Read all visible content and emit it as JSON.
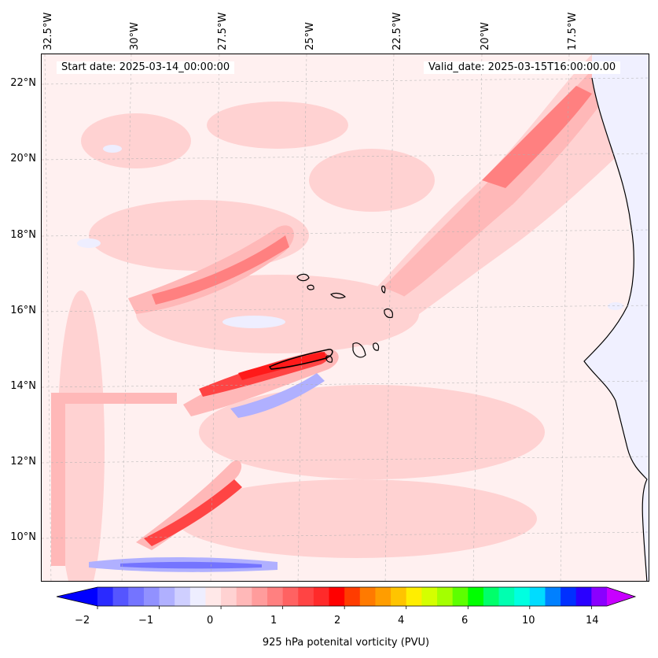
{
  "header": {
    "start_date": "Start date: 2025-03-14_00:00:00",
    "valid_date": "Valid_date: 2025-03-15T16:00:00.00"
  },
  "axes": {
    "longitude_labels": [
      "32.5°W",
      "30°W",
      "27.5°W",
      "25°W",
      "22.5°W",
      "20°W",
      "17.5°W"
    ],
    "latitude_labels": [
      "22°N",
      "20°N",
      "18°N",
      "16°N",
      "14°N",
      "12°N",
      "10°N"
    ]
  },
  "colorbar": {
    "label": "925 hPa potenital vorticity (PVU)",
    "tick_labels": [
      "−2",
      "−1",
      "0",
      "1",
      "2",
      "4",
      "6",
      "10",
      "14"
    ],
    "colors": [
      "#0000ff",
      "#2a2aff",
      "#5555ff",
      "#7474ff",
      "#9191ff",
      "#b0b0ff",
      "#cfcfff",
      "#eeeeff",
      "#ffe8e8",
      "#ffd2d2",
      "#ffb8b8",
      "#ff9c9c",
      "#ff8080",
      "#ff6262",
      "#ff4444",
      "#ff2a2a",
      "#ff0000",
      "#ff3c00",
      "#ff7a00",
      "#ff9d00",
      "#ffc400",
      "#ffee00",
      "#d4ff00",
      "#a4ff00",
      "#5dff00",
      "#00ff00",
      "#00ff6a",
      "#00ffb0",
      "#00ffe0",
      "#00dcff",
      "#0080ff",
      "#0030ff",
      "#2a00ff",
      "#8a00ff",
      "#c800ff"
    ]
  },
  "map_colors": {
    "background": "#fff0f0",
    "light_pink": "#ffd2d2",
    "pink": "#ffb8b8",
    "medium_red": "#ff8080",
    "red": "#ff4444",
    "dark_red": "#ff1a1a",
    "light_blue": "#eeeeff",
    "blue": "#b0b0ff",
    "deep_blue": "#7474ff",
    "land": "#f0f0ff",
    "coastline": "#000000"
  }
}
